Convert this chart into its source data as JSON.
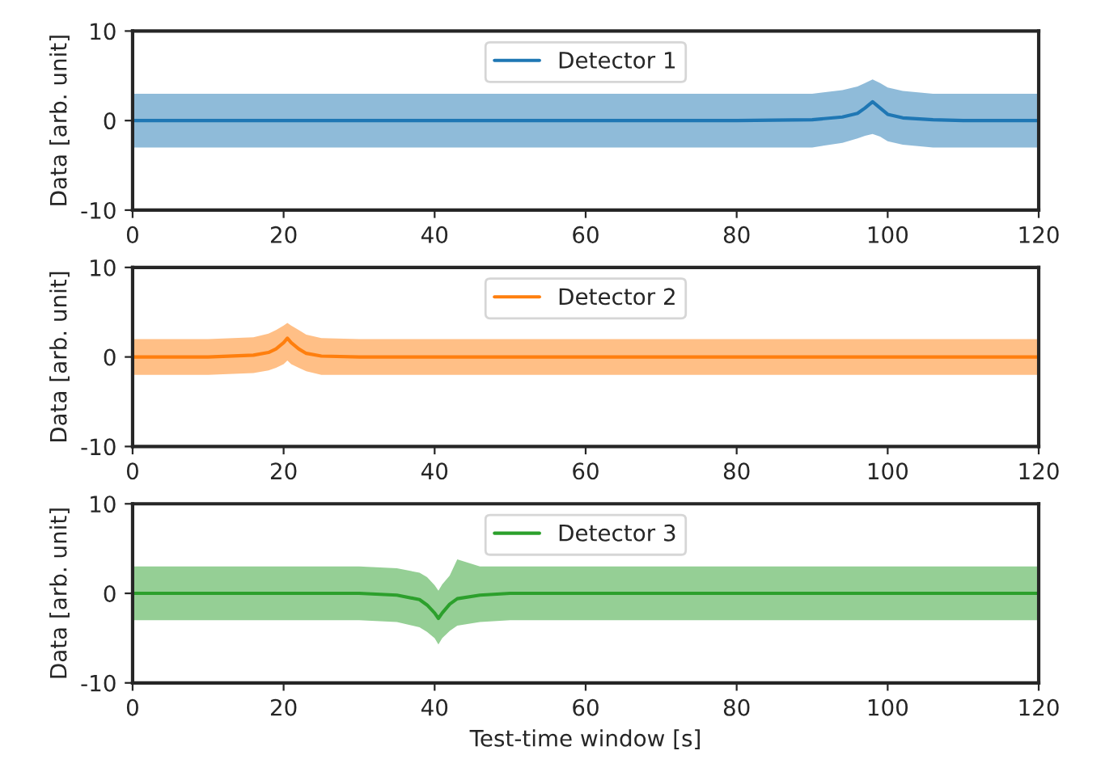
{
  "chart_data": [
    {
      "type": "line",
      "ylabel": "Data [arb. unit]",
      "xlim": [
        0,
        120
      ],
      "ylim": [
        -10,
        10
      ],
      "xticks": [
        0,
        20,
        40,
        60,
        80,
        100,
        120
      ],
      "yticks": [
        -10,
        0,
        10
      ],
      "legend": "top",
      "grid": false,
      "series": [
        {
          "name": "Detector 1",
          "color": "#1f77b4",
          "x": [
            0,
            20,
            40,
            60,
            80,
            90,
            94,
            96,
            97,
            98,
            99,
            100,
            102,
            106,
            110,
            120
          ],
          "values": [
            0,
            0,
            0,
            0,
            0,
            0.1,
            0.4,
            0.8,
            1.4,
            2.1,
            1.4,
            0.7,
            0.3,
            0.1,
            0,
            0
          ],
          "lower": [
            -3,
            -3,
            -3,
            -3,
            -3,
            -3,
            -2.5,
            -2,
            -1.7,
            -1.5,
            -1.8,
            -2.3,
            -2.7,
            -3,
            -3,
            -3
          ],
          "upper": [
            3,
            3,
            3,
            3,
            3,
            3,
            3.4,
            3.8,
            4.2,
            4.6,
            4.2,
            3.7,
            3.3,
            3,
            3,
            3
          ]
        }
      ]
    },
    {
      "type": "line",
      "ylabel": "Data [arb. unit]",
      "xlim": [
        0,
        120
      ],
      "ylim": [
        -10,
        10
      ],
      "xticks": [
        0,
        20,
        40,
        60,
        80,
        100,
        120
      ],
      "yticks": [
        -10,
        0,
        10
      ],
      "legend": "top",
      "grid": false,
      "series": [
        {
          "name": "Detector 2",
          "color": "#ff7f0e",
          "x": [
            0,
            10,
            16,
            18,
            19,
            20,
            20.5,
            21,
            22,
            23,
            25,
            30,
            40,
            60,
            80,
            100,
            120
          ],
          "values": [
            0,
            0,
            0.2,
            0.5,
            0.9,
            1.6,
            2.1,
            1.6,
            0.9,
            0.4,
            0.1,
            0,
            0,
            0,
            0,
            0,
            0
          ],
          "lower": [
            -2,
            -2,
            -1.8,
            -1.5,
            -1.2,
            -0.8,
            -0.4,
            -0.8,
            -1.2,
            -1.6,
            -2,
            -2,
            -2,
            -2,
            -2,
            -2,
            -2
          ],
          "upper": [
            2,
            2,
            2.2,
            2.6,
            3,
            3.5,
            3.8,
            3.5,
            3,
            2.5,
            2.1,
            2,
            2,
            2,
            2,
            2,
            2
          ]
        }
      ]
    },
    {
      "type": "line",
      "ylabel": "Data [arb. unit]",
      "xlabel": "Test-time window [s]",
      "xlim": [
        0,
        120
      ],
      "ylim": [
        -10,
        10
      ],
      "xticks": [
        0,
        20,
        40,
        60,
        80,
        100,
        120
      ],
      "yticks": [
        -10,
        0,
        10
      ],
      "legend": "top",
      "grid": false,
      "series": [
        {
          "name": "Detector 3",
          "color": "#2ca02c",
          "x": [
            0,
            20,
            30,
            35,
            38,
            39,
            40,
            40.5,
            41,
            42,
            43,
            46,
            50,
            60,
            80,
            100,
            120
          ],
          "values": [
            0,
            0,
            0,
            -0.2,
            -0.7,
            -1.3,
            -2.2,
            -2.8,
            -2.2,
            -1.2,
            -0.6,
            -0.2,
            0,
            0,
            0,
            0,
            0
          ],
          "lower": [
            -3,
            -3,
            -3,
            -3.2,
            -3.8,
            -4.3,
            -5,
            -5.7,
            -5,
            -4.2,
            -3.6,
            -3.2,
            -3,
            -3,
            -3,
            -3,
            -3
          ],
          "upper": [
            3,
            3,
            3,
            2.8,
            2.3,
            1.8,
            0.9,
            0.3,
            1,
            2,
            3.8,
            3,
            3,
            3,
            3,
            3,
            3
          ]
        }
      ]
    }
  ]
}
